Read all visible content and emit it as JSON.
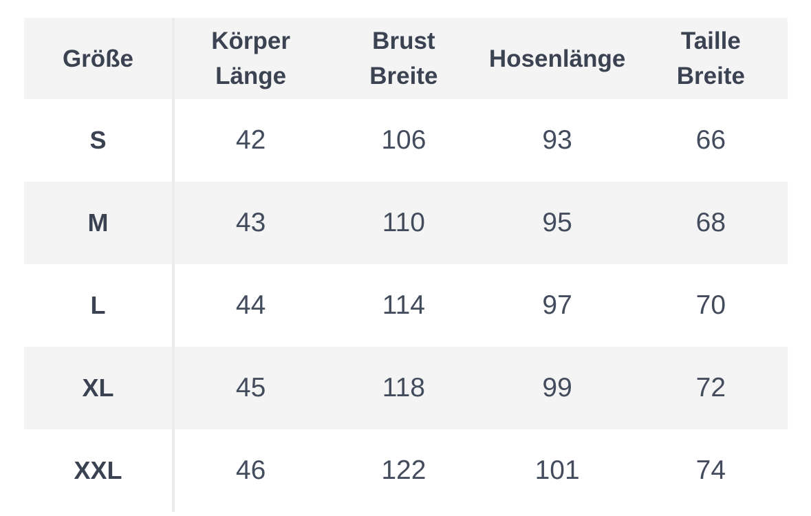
{
  "table": {
    "title": "size-chart",
    "columns": [
      {
        "id": "groesse",
        "line1": "Größe"
      },
      {
        "id": "koerper_laenge",
        "line1": "Körper",
        "line2": "Länge"
      },
      {
        "id": "brust_breite",
        "line1": "Brust",
        "line2": "Breite"
      },
      {
        "id": "hosenlaenge",
        "line1": "Hosenlänge"
      },
      {
        "id": "taille_breite",
        "line1": "Taille",
        "line2": "Breite"
      }
    ],
    "rows": [
      {
        "size": "S",
        "values": [
          "42",
          "106",
          "93",
          "66"
        ]
      },
      {
        "size": "M",
        "values": [
          "43",
          "110",
          "95",
          "68"
        ]
      },
      {
        "size": "L",
        "values": [
          "44",
          "114",
          "97",
          "70"
        ]
      },
      {
        "size": "XL",
        "values": [
          "45",
          "118",
          "99",
          "72"
        ]
      },
      {
        "size": "XXL",
        "values": [
          "46",
          "122",
          "101",
          "74"
        ]
      }
    ]
  },
  "colors": {
    "stripe": "#f4f4f4",
    "divider": "#ececec",
    "heading_text": "#3b4252",
    "value_text": "#434c5c",
    "page_background": "#ffffff"
  }
}
